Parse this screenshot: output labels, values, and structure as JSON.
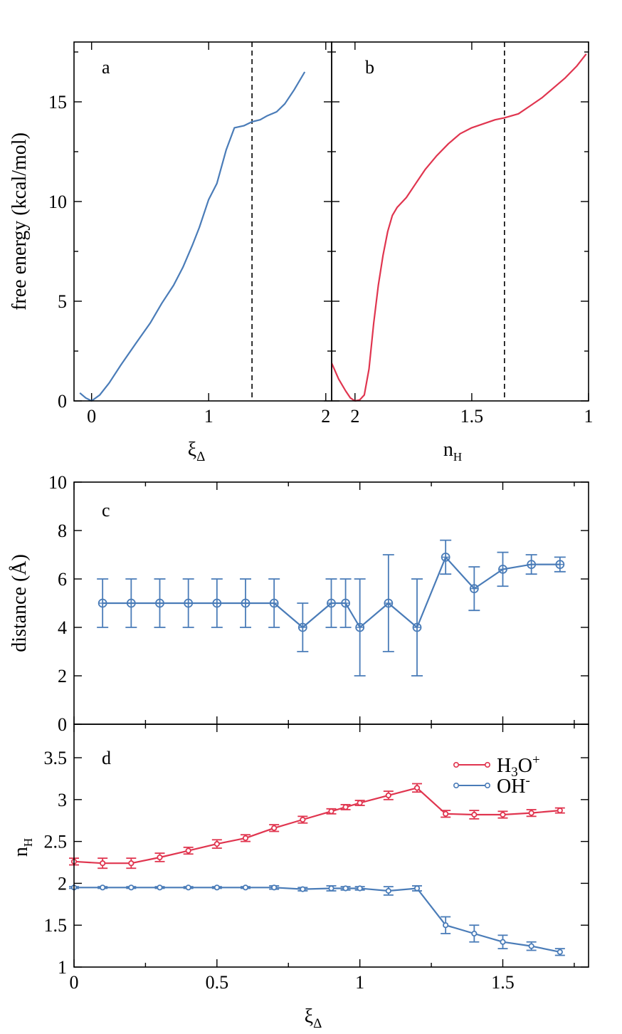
{
  "colors": {
    "blue": "#4a7cb8",
    "red": "#e0354f",
    "axis": "#000000"
  },
  "chart_data": [
    {
      "id": "a",
      "type": "line",
      "panel_label": "a",
      "xlabel_main": "ξ",
      "xlabel_sub": "Δ",
      "ylabel": "free energy (kcal/mol)",
      "xlim": [
        -0.15,
        2.05
      ],
      "ylim": [
        0,
        18
      ],
      "xticks": [
        0,
        1,
        2
      ],
      "xtick_labels": [
        "0",
        "1",
        "2"
      ],
      "yticks": [
        0,
        5,
        10,
        15
      ],
      "ytick_labels": [
        "0",
        "5",
        "10",
        "15"
      ],
      "vline": 1.37,
      "series": [
        {
          "name": "free energy",
          "color": "#4a7cb8",
          "x": [
            -0.1,
            -0.05,
            0.0,
            0.07,
            0.15,
            0.25,
            0.38,
            0.5,
            0.6,
            0.7,
            0.78,
            0.86,
            0.92,
            1.0,
            1.07,
            1.15,
            1.22,
            1.3,
            1.37,
            1.44,
            1.5,
            1.58,
            1.65,
            1.73,
            1.82
          ],
          "y": [
            0.4,
            0.15,
            0.0,
            0.3,
            0.9,
            1.8,
            2.9,
            3.9,
            4.9,
            5.8,
            6.7,
            7.8,
            8.7,
            10.1,
            10.9,
            12.6,
            13.7,
            13.8,
            14.0,
            14.1,
            14.3,
            14.5,
            14.9,
            15.6,
            16.5
          ]
        }
      ]
    },
    {
      "id": "b",
      "type": "line",
      "panel_label": "b",
      "xlabel_main": "n",
      "xlabel_sub": "H",
      "xlim": [
        2.1,
        1.0
      ],
      "ylim": [
        0,
        18
      ],
      "xticks": [
        2,
        1.5,
        1
      ],
      "xtick_labels": [
        "2",
        "1.5",
        "1"
      ],
      "yticks": [
        0,
        5,
        10,
        15
      ],
      "vline": 1.36,
      "series": [
        {
          "name": "free energy",
          "color": "#e0354f",
          "x": [
            2.1,
            2.07,
            2.04,
            2.02,
            2.0,
            1.98,
            1.96,
            1.94,
            1.92,
            1.9,
            1.88,
            1.86,
            1.84,
            1.82,
            1.78,
            1.74,
            1.7,
            1.65,
            1.6,
            1.55,
            1.5,
            1.45,
            1.4,
            1.36,
            1.3,
            1.25,
            1.2,
            1.15,
            1.1,
            1.05,
            1.01
          ],
          "y": [
            1.9,
            1.1,
            0.5,
            0.15,
            0.0,
            0.05,
            0.3,
            1.6,
            3.9,
            5.8,
            7.3,
            8.5,
            9.3,
            9.7,
            10.2,
            10.9,
            11.6,
            12.3,
            12.9,
            13.4,
            13.7,
            13.9,
            14.1,
            14.2,
            14.4,
            14.8,
            15.2,
            15.7,
            16.2,
            16.8,
            17.4
          ]
        }
      ]
    },
    {
      "id": "c",
      "type": "line",
      "panel_label": "c",
      "ylabel": "distance (Å)",
      "xlim": [
        0,
        1.8
      ],
      "ylim": [
        0,
        10
      ],
      "yticks": [
        0,
        2,
        4,
        6,
        8,
        10
      ],
      "ytick_labels": [
        "0",
        "2",
        "4",
        "6",
        "8",
        "10"
      ],
      "series": [
        {
          "name": "distance",
          "color": "#4a7cb8",
          "x": [
            0.1,
            0.2,
            0.3,
            0.4,
            0.5,
            0.6,
            0.7,
            0.8,
            0.9,
            0.95,
            1.0,
            1.1,
            1.2,
            1.3,
            1.4,
            1.5,
            1.6,
            1.7
          ],
          "y": [
            5.0,
            5.0,
            5.0,
            5.0,
            5.0,
            5.0,
            5.0,
            4.0,
            5.0,
            5.0,
            4.0,
            5.0,
            4.0,
            6.9,
            5.6,
            6.4,
            6.6,
            6.6
          ],
          "err": [
            1.0,
            1.0,
            1.0,
            1.0,
            1.0,
            1.0,
            1.0,
            1.0,
            1.0,
            1.0,
            2.0,
            2.0,
            2.0,
            0.7,
            0.9,
            0.7,
            0.4,
            0.3
          ]
        }
      ]
    },
    {
      "id": "d",
      "type": "line",
      "panel_label": "d",
      "xlabel_main": "ξ",
      "xlabel_sub": "Δ",
      "ylabel_main": "n",
      "ylabel_sub": "H",
      "xlim": [
        0,
        1.8
      ],
      "ylim": [
        1,
        3.9
      ],
      "xticks": [
        0,
        0.5,
        1,
        1.5
      ],
      "xtick_labels": [
        "0",
        "0.5",
        "1",
        "1.5"
      ],
      "yticks": [
        1,
        1.5,
        2,
        2.5,
        3,
        3.5
      ],
      "ytick_labels": [
        "1",
        "1.5",
        "2",
        "2.5",
        "3",
        "3.5"
      ],
      "legend_position": "top-right",
      "series": [
        {
          "name": "H3O+",
          "legend_parts": [
            "H",
            "3",
            "O",
            "+"
          ],
          "color": "#e0354f",
          "x": [
            0.0,
            0.1,
            0.2,
            0.3,
            0.4,
            0.5,
            0.6,
            0.7,
            0.8,
            0.9,
            0.95,
            1.0,
            1.1,
            1.2,
            1.3,
            1.4,
            1.5,
            1.6,
            1.7
          ],
          "y": [
            2.26,
            2.24,
            2.24,
            2.31,
            2.39,
            2.47,
            2.54,
            2.66,
            2.76,
            2.86,
            2.91,
            2.96,
            3.05,
            3.14,
            2.83,
            2.82,
            2.82,
            2.84,
            2.87
          ],
          "err": [
            0.04,
            0.06,
            0.06,
            0.05,
            0.04,
            0.05,
            0.04,
            0.04,
            0.04,
            0.03,
            0.03,
            0.03,
            0.05,
            0.05,
            0.04,
            0.05,
            0.04,
            0.04,
            0.03
          ]
        },
        {
          "name": "OH-",
          "legend_parts": [
            "OH",
            "-"
          ],
          "color": "#4a7cb8",
          "x": [
            0.0,
            0.1,
            0.2,
            0.3,
            0.4,
            0.5,
            0.6,
            0.7,
            0.8,
            0.9,
            0.95,
            1.0,
            1.1,
            1.2,
            1.3,
            1.4,
            1.5,
            1.6,
            1.7
          ],
          "y": [
            1.95,
            1.95,
            1.95,
            1.95,
            1.95,
            1.95,
            1.95,
            1.95,
            1.93,
            1.94,
            1.94,
            1.94,
            1.91,
            1.94,
            1.5,
            1.4,
            1.3,
            1.25,
            1.18
          ],
          "err": [
            0.01,
            0.01,
            0.01,
            0.01,
            0.01,
            0.01,
            0.01,
            0.02,
            0.02,
            0.03,
            0.02,
            0.02,
            0.05,
            0.03,
            0.1,
            0.1,
            0.08,
            0.05,
            0.04
          ]
        }
      ]
    }
  ]
}
